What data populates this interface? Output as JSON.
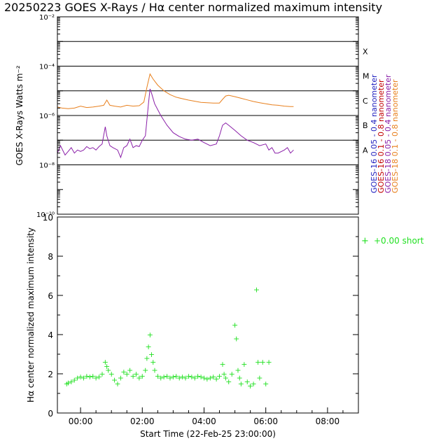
{
  "title": "20250223 GOES X-Rays / Hα center normalized maximum intensity",
  "colors": {
    "goes16_short": "#1f1fbf",
    "goes16_long": "#c00000",
    "goes18_short": "#8a1fa8",
    "goes18_long": "#e8801e",
    "ha": "#22e022",
    "axis": "#000000"
  },
  "chart_data": [
    {
      "type": "line",
      "title": "GOES X-Rays",
      "ylabel": "GOES X-Rays Watts m⁻²",
      "yscale": "log",
      "ylim": [
        1e-10,
        0.01
      ],
      "xlim_hours": [
        -0.75,
        9.0
      ],
      "y_ticks": [
        {
          "exp": -2,
          "label": "10⁻²"
        },
        {
          "exp": -4,
          "label": "10⁻⁴"
        },
        {
          "exp": -6,
          "label": "10⁻⁶"
        },
        {
          "exp": -8,
          "label": "10⁻⁸"
        },
        {
          "exp": -10,
          "label": "10⁻¹⁰"
        }
      ],
      "class_lines": [
        {
          "label": "X",
          "value": 0.001
        },
        {
          "label": "M",
          "value": 0.0001
        },
        {
          "label": "C",
          "value": 1e-05
        },
        {
          "label": "B",
          "value": 1e-06
        },
        {
          "label": "A",
          "value": 1e-07
        }
      ],
      "extra_gridline": 1e-08,
      "legend": [
        {
          "label": "GOES-16 0.05 - 0.4 nanometer",
          "color_key": "goes16_short"
        },
        {
          "label": "GOES-16 0.1 - 0.8 nanometer",
          "color_key": "goes16_long"
        },
        {
          "label": "GOES-18 0.05 - 0.4 nanometer",
          "color_key": "goes18_short"
        },
        {
          "label": "GOES-18 0.1 - 0.8 nanometer",
          "color_key": "goes18_long"
        }
      ],
      "series": [
        {
          "name": "GOES-18 0.1 - 0.8 nanometer",
          "color_key": "goes18_long",
          "x_hours": [
            -0.75,
            -0.6,
            -0.4,
            -0.2,
            0.0,
            0.2,
            0.4,
            0.6,
            0.75,
            0.85,
            0.95,
            1.1,
            1.3,
            1.5,
            1.7,
            1.9,
            2.05,
            2.15,
            2.25,
            2.35,
            2.5,
            2.7,
            2.9,
            3.1,
            3.3,
            3.5,
            3.7,
            3.9,
            4.1,
            4.3,
            4.5,
            4.6,
            4.7,
            4.8,
            5.0,
            5.2,
            5.4,
            5.6,
            5.8,
            6.0,
            6.2,
            6.4,
            6.6,
            6.8,
            6.9
          ],
          "values": [
            2.2e-06,
            2e-06,
            1.9e-06,
            2e-06,
            2.4e-06,
            2.1e-06,
            2.2e-06,
            2.4e-06,
            2.6e-06,
            4.2e-06,
            2.6e-06,
            2.4e-06,
            2.2e-06,
            2.6e-06,
            2.4e-06,
            2.5e-06,
            3.5e-06,
            1.4e-05,
            4.8e-05,
            3e-05,
            1.7e-05,
            1e-05,
            7e-06,
            5.5e-06,
            4.8e-06,
            4.2e-06,
            3.8e-06,
            3.4e-06,
            3.3e-06,
            3.2e-06,
            3.2e-06,
            4.5e-06,
            6.2e-06,
            6.6e-06,
            5.8e-06,
            5e-06,
            4.3e-06,
            3.7e-06,
            3.3e-06,
            3e-06,
            2.7e-06,
            2.6e-06,
            2.4e-06,
            2.3e-06,
            2.3e-06
          ]
        },
        {
          "name": "GOES-18 0.05 - 0.4 nanometer",
          "color_key": "goes18_short",
          "x_hours": [
            -0.75,
            -0.65,
            -0.5,
            -0.4,
            -0.3,
            -0.2,
            -0.1,
            0.0,
            0.1,
            0.2,
            0.3,
            0.4,
            0.5,
            0.6,
            0.7,
            0.8,
            0.85,
            0.95,
            1.05,
            1.2,
            1.3,
            1.4,
            1.5,
            1.6,
            1.7,
            1.8,
            1.9,
            2.0,
            2.1,
            2.2,
            2.25,
            2.3,
            2.4,
            2.6,
            2.8,
            3.0,
            3.2,
            3.4,
            3.6,
            3.8,
            4.0,
            4.2,
            4.4,
            4.5,
            4.6,
            4.7,
            4.8,
            5.0,
            5.2,
            5.4,
            5.6,
            5.8,
            6.0,
            6.1,
            6.2,
            6.3,
            6.4,
            6.6,
            6.7,
            6.8,
            6.9
          ],
          "values": [
            3e-08,
            6e-08,
            2.5e-08,
            3.5e-08,
            5e-08,
            3e-08,
            4e-08,
            3.5e-08,
            4e-08,
            5.5e-08,
            4.5e-08,
            5e-08,
            4e-08,
            5.5e-08,
            7e-08,
            3.5e-07,
            1.5e-07,
            6e-08,
            5e-08,
            4e-08,
            2e-08,
            5e-08,
            6e-08,
            1.1e-07,
            5e-08,
            6e-08,
            5.5e-08,
            1e-07,
            1.5e-07,
            3e-06,
            1.2e-05,
            8e-06,
            3e-06,
            1e-06,
            4e-07,
            2e-07,
            1.4e-07,
            1.1e-07,
            1e-07,
            1.1e-07,
            8e-08,
            6e-08,
            7e-08,
            1.5e-07,
            4e-07,
            5e-07,
            4e-07,
            2.5e-07,
            1.5e-07,
            1e-07,
            8e-08,
            6e-08,
            7e-08,
            4e-08,
            5e-08,
            3e-08,
            3e-08,
            4e-08,
            5e-08,
            3e-08,
            4e-08
          ]
        }
      ]
    },
    {
      "type": "scatter",
      "ylabel": "Hα center normalized maximum intensity",
      "xlabel": "Start Time (22-Feb-25 23:00:00)",
      "ylim": [
        0,
        10
      ],
      "xlim_hours": [
        -0.75,
        9.0
      ],
      "y_ticks": [
        "0",
        "2",
        "4",
        "6",
        "8",
        "10"
      ],
      "x_ticks": [
        {
          "hours": 0,
          "label": "00:00"
        },
        {
          "hours": 2,
          "label": "02:00"
        },
        {
          "hours": 4,
          "label": "04:00"
        },
        {
          "hours": 6,
          "label": "06:00"
        },
        {
          "hours": 8,
          "label": "08:00"
        }
      ],
      "legend": {
        "symbol": "+",
        "label": "+0.00 short"
      },
      "series": [
        {
          "name": "Hα center normalized maximum intensity",
          "color_key": "ha",
          "x_hours": [
            -0.45,
            -0.4,
            -0.3,
            -0.2,
            -0.1,
            0.0,
            0.1,
            0.2,
            0.3,
            0.4,
            0.5,
            0.6,
            0.7,
            0.8,
            0.85,
            0.9,
            1.0,
            1.1,
            1.2,
            1.3,
            1.4,
            1.5,
            1.6,
            1.7,
            1.8,
            1.9,
            2.0,
            2.1,
            2.15,
            2.2,
            2.25,
            2.3,
            2.35,
            2.4,
            2.5,
            2.6,
            2.7,
            2.8,
            2.9,
            3.0,
            3.1,
            3.2,
            3.3,
            3.4,
            3.5,
            3.6,
            3.7,
            3.8,
            3.9,
            4.0,
            4.1,
            4.2,
            4.3,
            4.4,
            4.5,
            4.6,
            4.65,
            4.7,
            4.8,
            4.9,
            5.0,
            5.05,
            5.1,
            5.15,
            5.2,
            5.3,
            5.4,
            5.5,
            5.6,
            5.7,
            5.75,
            5.8,
            5.9,
            6.0,
            6.1
          ],
          "values": [
            1.5,
            1.55,
            1.6,
            1.7,
            1.8,
            1.85,
            1.8,
            1.9,
            1.85,
            1.9,
            1.8,
            1.85,
            2.0,
            2.6,
            2.4,
            2.2,
            2.0,
            1.7,
            1.5,
            1.8,
            2.1,
            2.0,
            2.2,
            1.9,
            2.0,
            1.8,
            1.9,
            2.2,
            2.8,
            3.4,
            4.0,
            3.0,
            2.6,
            2.2,
            1.9,
            1.8,
            1.85,
            1.9,
            1.8,
            1.85,
            1.9,
            1.8,
            1.85,
            1.8,
            1.9,
            1.85,
            1.8,
            1.9,
            1.85,
            1.8,
            1.75,
            1.8,
            1.85,
            1.75,
            1.9,
            2.5,
            2.0,
            1.8,
            1.6,
            2.0,
            4.5,
            3.8,
            2.2,
            1.8,
            1.5,
            2.5,
            1.6,
            1.4,
            1.5,
            6.3,
            2.6,
            1.8,
            2.6,
            1.5,
            2.6
          ]
        }
      ]
    }
  ]
}
